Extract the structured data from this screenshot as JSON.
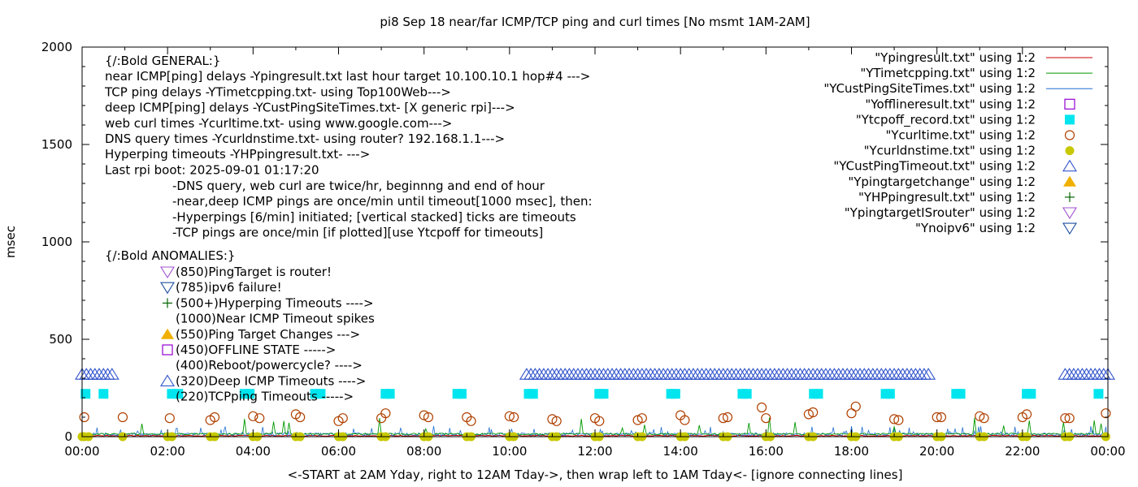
{
  "chart_data": {
    "type": "scatter",
    "title": "pi8 Sep 18  near/far ICMP/TCP ping and curl times [No msmt 1AM-2AM]",
    "xlabel": "<-START at 2AM Yday, right to 12AM Tday->, then wrap left to 1AM Tday<- [ignore connecting lines]",
    "ylabel": "msec",
    "xlim": [
      0,
      24
    ],
    "ylim": [
      0,
      2000
    ],
    "y_ticks": [
      "0",
      "500",
      "1000",
      "1500",
      "2000"
    ],
    "x_ticks": [
      "00:00",
      "02:00",
      "04:00",
      "06:00",
      "08:00",
      "10:00",
      "12:00",
      "14:00",
      "16:00",
      "18:00",
      "20:00",
      "22:00",
      "00:00"
    ],
    "legend_position": "top-right",
    "colors": {
      "ping": "#cc0000",
      "tcp": "#009900",
      "custping": "#1f6fd1",
      "offline": "#9400d3",
      "tcpoff": "#00e5ee",
      "curl": "#b04000",
      "dns": "#c8c800",
      "custtimeout": "#3355cc",
      "targetchange": "#f0b000",
      "hpping": "#006400",
      "router": "#a050d0",
      "noipv6": "#1f4fa0"
    },
    "legend": [
      {
        "name": "\"Ypingresult.txt\" using 1:2",
        "marker": "line",
        "color_key": "ping"
      },
      {
        "name": "\"YTimetcpping.txt\" using 1:2",
        "marker": "line",
        "color_key": "tcp"
      },
      {
        "name": "\"YCustPingSiteTimes.txt\" using 1:2",
        "marker": "line",
        "color_key": "custping"
      },
      {
        "name": "\"Yofflineresult.txt\" using 1:2",
        "marker": "open-square",
        "color_key": "offline"
      },
      {
        "name": "\"Ytcpoff_record.txt\" using 1:2",
        "marker": "filled-square",
        "color_key": "tcpoff"
      },
      {
        "name": "\"Ycurltime.txt\" using 1:2",
        "marker": "open-circle",
        "color_key": "curl"
      },
      {
        "name": "\"Ycurldnstime.txt\" using 1:2",
        "marker": "filled-circle",
        "color_key": "dns"
      },
      {
        "name": "\"YCustPingTimeout.txt\" using 1:2",
        "marker": "open-triangle-up",
        "color_key": "custtimeout"
      },
      {
        "name": "\"Ypingtargetchange\" using 1:2",
        "marker": "filled-triangle-up",
        "color_key": "targetchange"
      },
      {
        "name": "\"YHPpingresult.txt\" using 1:2",
        "marker": "plus",
        "color_key": "hpping"
      },
      {
        "name": "\"YpingtargetISrouter\" using 1:2",
        "marker": "open-triangle-down",
        "color_key": "router"
      },
      {
        "name": "\"Ynoipv6\" using 1:2",
        "marker": "open-triangle-down",
        "color_key": "noipv6"
      }
    ],
    "annotations_general": [
      "{/:Bold GENERAL:}",
      "near ICMP[ping] delays -Ypingresult.txt last hour target 10.100.10.1 hop#4 --->",
      "TCP ping delays -YTimetcpping.txt- using Top100Web--->",
      "deep ICMP[ping] delays -YCustPingSiteTimes.txt- [X generic rpi]--->",
      "web curl times -Ycurltime.txt- using www.google.com--->",
      "DNS query times -Ycurldnstime.txt- using router? 192.168.1.1--->",
      "Hyperping timeouts -YHPpingresult.txt- --->",
      "Last rpi boot: 2025-09-01 01:17:20"
    ],
    "annotations_notes": [
      "-DNS query, web curl are twice/hr, beginnng and end of hour",
      "-near,deep ICMP pings are once/min until timeout[1000 msec], then:",
      "  -Hyperpings [6/min] initiated; [vertical stacked] ticks are timeouts",
      "-TCP pings are once/min [if plotted][use Ytcpoff for timeouts]"
    ],
    "annotations_anomalies_title": "{/:Bold ANOMALIES:}",
    "annotations_anomalies": [
      {
        "text": "(850)PingTarget is router!",
        "marker": "open-triangle-down",
        "color_key": "router"
      },
      {
        "text": "(785)ipv6 failure!",
        "marker": "open-triangle-down",
        "color_key": "noipv6"
      },
      {
        "text": "(500+)Hyperping Timeouts ---->",
        "marker": "plus",
        "color_key": "hpping"
      },
      {
        "text": "(1000)Near ICMP Timeout spikes",
        "marker": "none",
        "color_key": "ping"
      },
      {
        "text": "(550)Ping Target Changes --->",
        "marker": "filled-triangle-up",
        "color_key": "targetchange"
      },
      {
        "text": "(450)OFFLINE STATE ----->",
        "marker": "open-square",
        "color_key": "offline"
      },
      {
        "text": "(400)Reboot/powercycle? ---->",
        "marker": "none",
        "color_key": "ping"
      },
      {
        "text": "(320)Deep ICMP Timeouts ---->",
        "marker": "open-triangle-up",
        "color_key": "custtimeout"
      },
      {
        "text": "(220)TCPping Timeouts ----->",
        "marker": "none",
        "color_key": "tcp"
      }
    ],
    "series": [
      {
        "key": "tcpoff",
        "marker": "filled-square",
        "y": 220,
        "x": [
          0.08,
          0.5,
          2.1,
          2.25,
          3.8,
          3.92,
          5.45,
          5.58,
          7.1,
          7.2,
          8.78,
          8.88,
          10.45,
          10.55,
          12.1,
          12.2,
          13.78,
          13.88,
          15.45,
          15.55,
          17.12,
          17.22,
          18.8,
          18.9,
          20.45,
          20.55,
          22.1,
          22.2,
          23.78
        ]
      },
      {
        "key": "custtimeout",
        "marker": "open-triangle-up",
        "y": 320,
        "ranges": [
          [
            0.0,
            0.7
          ],
          [
            10.4,
            19.8
          ],
          [
            23.0,
            24.0
          ]
        ],
        "step": 0.1
      },
      {
        "key": "curl",
        "marker": "open-circle",
        "x": [
          0.05,
          0.95,
          2.05,
          3.0,
          3.1,
          4.0,
          4.15,
          5.0,
          5.1,
          6.0,
          6.1,
          7.0,
          7.1,
          8.0,
          8.1,
          9.0,
          9.1,
          10.0,
          10.1,
          11.0,
          11.1,
          12.0,
          12.1,
          13.0,
          13.1,
          14.0,
          14.1,
          15.0,
          15.1,
          15.9,
          16.0,
          17.0,
          17.1,
          18.0,
          18.1,
          19.0,
          19.1,
          20.0,
          20.1,
          21.0,
          21.1,
          22.0,
          22.1,
          23.0,
          23.1,
          23.95
        ],
        "y": [
          100,
          100,
          95,
          85,
          100,
          105,
          95,
          115,
          100,
          80,
          95,
          95,
          120,
          110,
          100,
          100,
          80,
          105,
          100,
          90,
          80,
          95,
          80,
          85,
          95,
          110,
          85,
          95,
          100,
          150,
          95,
          115,
          125,
          120,
          155,
          90,
          85,
          100,
          100,
          105,
          95,
          100,
          115,
          95,
          95,
          120
        ]
      },
      {
        "key": "dns",
        "marker": "filled-circle",
        "y": 0,
        "x": [
          0.0,
          0.05,
          0.15,
          0.95,
          2.0,
          2.1,
          3.0,
          3.1,
          4.0,
          4.1,
          5.0,
          5.1,
          6.0,
          6.1,
          7.0,
          7.1,
          8.0,
          8.1,
          9.0,
          9.1,
          10.0,
          10.1,
          11.0,
          11.1,
          12.0,
          12.1,
          13.0,
          13.1,
          14.0,
          14.1,
          15.0,
          15.1,
          16.0,
          16.1,
          17.0,
          17.1,
          18.0,
          18.1,
          19.0,
          19.1,
          20.0,
          20.1,
          21.0,
          21.1,
          22.0,
          22.1,
          23.0,
          23.1,
          23.95
        ]
      }
    ]
  }
}
